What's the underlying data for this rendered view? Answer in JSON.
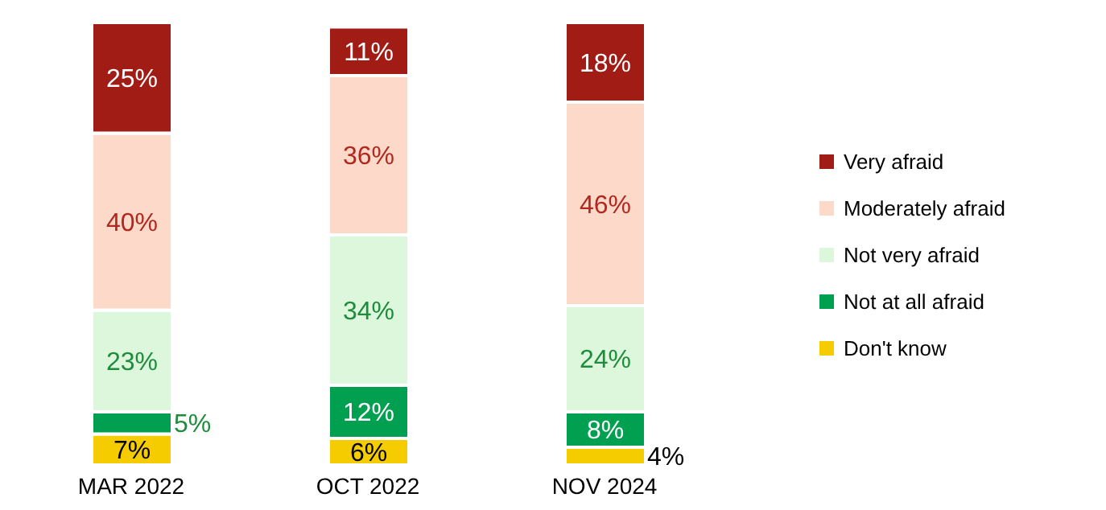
{
  "chart_data": {
    "type": "bar",
    "stacked": true,
    "data_labels": true,
    "legend": "right",
    "categories": [
      "MAR 2022",
      "OCT 2022",
      "NOV 2024"
    ],
    "series": [
      {
        "name": "Don't know",
        "color": "#f5cc00",
        "values": [
          7,
          6,
          4
        ],
        "value_labels": [
          "7%",
          "6%",
          "4%"
        ]
      },
      {
        "name": "Not at all afraid",
        "color": "#00a050",
        "values": [
          5,
          12,
          8
        ],
        "value_labels": [
          "5%",
          "12%",
          "8%"
        ]
      },
      {
        "name": "Not very afraid",
        "color": "#dcf7dc",
        "values": [
          23,
          34,
          24
        ],
        "value_labels": [
          "23%",
          "34%",
          "24%"
        ]
      },
      {
        "name": "Moderately afraid",
        "color": "#fdd9c9",
        "values": [
          40,
          36,
          46
        ],
        "value_labels": [
          "40%",
          "36%",
          "46%"
        ]
      },
      {
        "name": "Very afraid",
        "color": "#a01c14",
        "values": [
          25,
          11,
          18
        ],
        "value_labels": [
          "25%",
          "11%",
          "18%"
        ]
      }
    ]
  }
}
